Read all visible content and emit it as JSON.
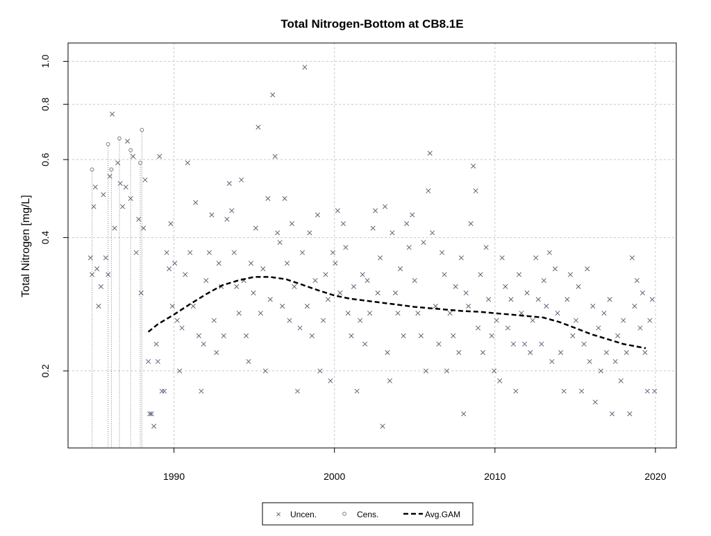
{
  "chart_data": {
    "type": "scatter",
    "title": "Total Nitrogen-Bottom at CB8.1E",
    "xlabel": "",
    "ylabel": "Total Nitrogen [mg/L]",
    "xlim": [
      1983.4,
      2021.3
    ],
    "ylim": [
      0.134,
      1.1
    ],
    "y_scale": "log",
    "x_ticks": [
      1990,
      2000,
      2010,
      2020
    ],
    "y_ticks": [
      0.2,
      0.4,
      0.6,
      0.8,
      1.0
    ],
    "y_tick_labels": [
      "0.2",
      "0.4",
      "0.6",
      "0.8",
      "1.0"
    ],
    "grid": true,
    "legend_position": "bottom-center",
    "colors": {
      "points": "#5a6478",
      "censored": "#7a7a7a",
      "gam_line": "#000000",
      "grid": "#c8c8c8"
    },
    "legend": {
      "uncen_label": "Uncen.",
      "cens_label": "Cens.",
      "gam_label": "Avg.GAM"
    },
    "series": [
      {
        "name": "Uncen.",
        "marker": "x",
        "points": [
          [
            1984.8,
            0.36
          ],
          [
            1984.9,
            0.33
          ],
          [
            1985.0,
            0.47
          ],
          [
            1985.1,
            0.52
          ],
          [
            1985.2,
            0.34
          ],
          [
            1985.3,
            0.28
          ],
          [
            1985.45,
            0.31
          ],
          [
            1985.6,
            0.5
          ],
          [
            1985.75,
            0.36
          ],
          [
            1985.9,
            0.33
          ],
          [
            1986.0,
            0.55
          ],
          [
            1986.15,
            0.76
          ],
          [
            1986.3,
            0.42
          ],
          [
            1986.5,
            0.59
          ],
          [
            1986.65,
            0.53
          ],
          [
            1986.8,
            0.47
          ],
          [
            1987.0,
            0.52
          ],
          [
            1987.1,
            0.66
          ],
          [
            1987.3,
            0.49
          ],
          [
            1987.45,
            0.61
          ],
          [
            1987.65,
            0.37
          ],
          [
            1987.8,
            0.44
          ],
          [
            1987.95,
            0.3
          ],
          [
            1988.1,
            0.42
          ],
          [
            1988.2,
            0.54
          ],
          [
            1988.4,
            0.21
          ],
          [
            1988.5,
            0.16
          ],
          [
            1988.6,
            0.16
          ],
          [
            1988.75,
            0.15
          ],
          [
            1988.9,
            0.23
          ],
          [
            1989.0,
            0.21
          ],
          [
            1989.1,
            0.61
          ],
          [
            1989.25,
            0.18
          ],
          [
            1989.4,
            0.18
          ],
          [
            1989.55,
            0.37
          ],
          [
            1989.7,
            0.34
          ],
          [
            1989.8,
            0.43
          ],
          [
            1989.9,
            0.28
          ],
          [
            1990.05,
            0.35
          ],
          [
            1990.2,
            0.26
          ],
          [
            1990.35,
            0.2
          ],
          [
            1990.5,
            0.25
          ],
          [
            1990.7,
            0.33
          ],
          [
            1990.85,
            0.59
          ],
          [
            1991.0,
            0.37
          ],
          [
            1991.2,
            0.28
          ],
          [
            1991.35,
            0.48
          ],
          [
            1991.55,
            0.24
          ],
          [
            1991.7,
            0.18
          ],
          [
            1991.85,
            0.23
          ],
          [
            1992.0,
            0.32
          ],
          [
            1992.2,
            0.37
          ],
          [
            1992.35,
            0.45
          ],
          [
            1992.5,
            0.26
          ],
          [
            1992.65,
            0.22
          ],
          [
            1992.8,
            0.35
          ],
          [
            1992.95,
            0.31
          ],
          [
            1993.1,
            0.24
          ],
          [
            1993.3,
            0.44
          ],
          [
            1993.45,
            0.53
          ],
          [
            1993.6,
            0.46
          ],
          [
            1993.75,
            0.37
          ],
          [
            1993.9,
            0.31
          ],
          [
            1994.05,
            0.27
          ],
          [
            1994.2,
            0.54
          ],
          [
            1994.35,
            0.32
          ],
          [
            1994.5,
            0.24
          ],
          [
            1994.65,
            0.21
          ],
          [
            1994.8,
            0.35
          ],
          [
            1994.95,
            0.3
          ],
          [
            1995.1,
            0.42
          ],
          [
            1995.25,
            0.71
          ],
          [
            1995.4,
            0.27
          ],
          [
            1995.55,
            0.34
          ],
          [
            1995.7,
            0.2
          ],
          [
            1995.85,
            0.49
          ],
          [
            1996.0,
            0.29
          ],
          [
            1996.15,
            0.84
          ],
          [
            1996.3,
            0.61
          ],
          [
            1996.45,
            0.41
          ],
          [
            1996.6,
            0.39
          ],
          [
            1996.75,
            0.28
          ],
          [
            1996.9,
            0.49
          ],
          [
            1997.05,
            0.35
          ],
          [
            1997.2,
            0.26
          ],
          [
            1997.35,
            0.43
          ],
          [
            1997.5,
            0.31
          ],
          [
            1997.7,
            0.18
          ],
          [
            1997.85,
            0.25
          ],
          [
            1998.0,
            0.37
          ],
          [
            1998.15,
            0.97
          ],
          [
            1998.3,
            0.28
          ],
          [
            1998.45,
            0.41
          ],
          [
            1998.6,
            0.24
          ],
          [
            1998.8,
            0.32
          ],
          [
            1998.95,
            0.45
          ],
          [
            1999.1,
            0.2
          ],
          [
            1999.3,
            0.26
          ],
          [
            1999.45,
            0.33
          ],
          [
            1999.6,
            0.29
          ],
          [
            1999.75,
            0.19
          ],
          [
            1999.9,
            0.37
          ],
          [
            2000.05,
            0.35
          ],
          [
            2000.2,
            0.46
          ],
          [
            2000.35,
            0.3
          ],
          [
            2000.55,
            0.43
          ],
          [
            2000.7,
            0.38
          ],
          [
            2000.85,
            0.27
          ],
          [
            2001.05,
            0.24
          ],
          [
            2001.2,
            0.31
          ],
          [
            2001.4,
            0.18
          ],
          [
            2001.6,
            0.26
          ],
          [
            2001.75,
            0.33
          ],
          [
            2001.9,
            0.23
          ],
          [
            2002.05,
            0.32
          ],
          [
            2002.2,
            0.27
          ],
          [
            2002.4,
            0.42
          ],
          [
            2002.55,
            0.46
          ],
          [
            2002.7,
            0.3
          ],
          [
            2002.85,
            0.36
          ],
          [
            2003.0,
            0.15
          ],
          [
            2003.15,
            0.47
          ],
          [
            2003.3,
            0.22
          ],
          [
            2003.45,
            0.19
          ],
          [
            2003.6,
            0.41
          ],
          [
            2003.8,
            0.3
          ],
          [
            2003.95,
            0.27
          ],
          [
            2004.1,
            0.34
          ],
          [
            2004.3,
            0.24
          ],
          [
            2004.5,
            0.43
          ],
          [
            2004.65,
            0.38
          ],
          [
            2004.85,
            0.45
          ],
          [
            2005.0,
            0.32
          ],
          [
            2005.2,
            0.27
          ],
          [
            2005.4,
            0.24
          ],
          [
            2005.55,
            0.39
          ],
          [
            2005.7,
            0.2
          ],
          [
            2005.85,
            0.51
          ],
          [
            2005.95,
            0.62
          ],
          [
            2006.1,
            0.41
          ],
          [
            2006.3,
            0.28
          ],
          [
            2006.5,
            0.23
          ],
          [
            2006.7,
            0.37
          ],
          [
            2006.85,
            0.33
          ],
          [
            2007.0,
            0.2
          ],
          [
            2007.2,
            0.27
          ],
          [
            2007.4,
            0.24
          ],
          [
            2007.55,
            0.31
          ],
          [
            2007.75,
            0.22
          ],
          [
            2007.9,
            0.36
          ],
          [
            2008.05,
            0.16
          ],
          [
            2008.2,
            0.3
          ],
          [
            2008.35,
            0.28
          ],
          [
            2008.5,
            0.43
          ],
          [
            2008.65,
            0.58
          ],
          [
            2008.8,
            0.51
          ],
          [
            2008.95,
            0.25
          ],
          [
            2009.1,
            0.33
          ],
          [
            2009.25,
            0.22
          ],
          [
            2009.45,
            0.38
          ],
          [
            2009.6,
            0.29
          ],
          [
            2009.8,
            0.24
          ],
          [
            2009.95,
            0.2
          ],
          [
            2010.1,
            0.26
          ],
          [
            2010.3,
            0.19
          ],
          [
            2010.45,
            0.36
          ],
          [
            2010.65,
            0.31
          ],
          [
            2010.8,
            0.25
          ],
          [
            2011.0,
            0.29
          ],
          [
            2011.15,
            0.23
          ],
          [
            2011.3,
            0.18
          ],
          [
            2011.5,
            0.33
          ],
          [
            2011.65,
            0.27
          ],
          [
            2011.85,
            0.23
          ],
          [
            2012.0,
            0.3
          ],
          [
            2012.2,
            0.22
          ],
          [
            2012.35,
            0.26
          ],
          [
            2012.55,
            0.36
          ],
          [
            2012.7,
            0.29
          ],
          [
            2012.9,
            0.23
          ],
          [
            2013.05,
            0.32
          ],
          [
            2013.2,
            0.28
          ],
          [
            2013.4,
            0.37
          ],
          [
            2013.55,
            0.21
          ],
          [
            2013.75,
            0.34
          ],
          [
            2013.9,
            0.27
          ],
          [
            2014.1,
            0.22
          ],
          [
            2014.3,
            0.18
          ],
          [
            2014.5,
            0.29
          ],
          [
            2014.7,
            0.33
          ],
          [
            2014.85,
            0.24
          ],
          [
            2015.05,
            0.26
          ],
          [
            2015.2,
            0.31
          ],
          [
            2015.4,
            0.18
          ],
          [
            2015.55,
            0.23
          ],
          [
            2015.75,
            0.34
          ],
          [
            2015.9,
            0.21
          ],
          [
            2016.1,
            0.28
          ],
          [
            2016.25,
            0.17
          ],
          [
            2016.45,
            0.25
          ],
          [
            2016.6,
            0.2
          ],
          [
            2016.8,
            0.27
          ],
          [
            2016.95,
            0.22
          ],
          [
            2017.15,
            0.29
          ],
          [
            2017.3,
            0.16
          ],
          [
            2017.5,
            0.21
          ],
          [
            2017.65,
            0.24
          ],
          [
            2017.85,
            0.19
          ],
          [
            2018.0,
            0.26
          ],
          [
            2018.2,
            0.22
          ],
          [
            2018.4,
            0.16
          ],
          [
            2018.55,
            0.36
          ],
          [
            2018.7,
            0.28
          ],
          [
            2018.85,
            0.32
          ],
          [
            2019.05,
            0.25
          ],
          [
            2019.2,
            0.3
          ],
          [
            2019.35,
            0.22
          ],
          [
            2019.5,
            0.18
          ],
          [
            2019.65,
            0.26
          ],
          [
            2019.8,
            0.29
          ],
          [
            2019.95,
            0.18
          ]
        ]
      },
      {
        "name": "Cens.",
        "marker": "o",
        "points": [
          [
            1984.9,
            0.57
          ],
          [
            1985.9,
            0.65
          ],
          [
            1986.1,
            0.57
          ],
          [
            1986.6,
            0.67
          ],
          [
            1987.3,
            0.63
          ],
          [
            1987.9,
            0.59
          ],
          [
            1988.0,
            0.7
          ]
        ]
      },
      {
        "name": "Avg.GAM",
        "marker": "dashed-line",
        "points": [
          [
            1988.4,
            0.245
          ],
          [
            1989.0,
            0.255
          ],
          [
            1990.0,
            0.268
          ],
          [
            1991.0,
            0.283
          ],
          [
            1992.0,
            0.298
          ],
          [
            1993.0,
            0.312
          ],
          [
            1994.0,
            0.32
          ],
          [
            1995.0,
            0.326
          ],
          [
            1996.0,
            0.326
          ],
          [
            1997.0,
            0.322
          ],
          [
            1998.0,
            0.313
          ],
          [
            1999.0,
            0.304
          ],
          [
            2000.0,
            0.296
          ],
          [
            2001.0,
            0.291
          ],
          [
            2002.0,
            0.288
          ],
          [
            2003.0,
            0.285
          ],
          [
            2004.0,
            0.282
          ],
          [
            2005.0,
            0.279
          ],
          [
            2006.0,
            0.277
          ],
          [
            2007.0,
            0.275
          ],
          [
            2008.0,
            0.273
          ],
          [
            2009.0,
            0.272
          ],
          [
            2010.0,
            0.27
          ],
          [
            2011.0,
            0.268
          ],
          [
            2012.0,
            0.266
          ],
          [
            2013.0,
            0.264
          ],
          [
            2014.0,
            0.258
          ],
          [
            2015.0,
            0.25
          ],
          [
            2016.0,
            0.242
          ],
          [
            2017.0,
            0.236
          ],
          [
            2018.0,
            0.23
          ],
          [
            2019.4,
            0.225
          ]
        ]
      }
    ]
  }
}
